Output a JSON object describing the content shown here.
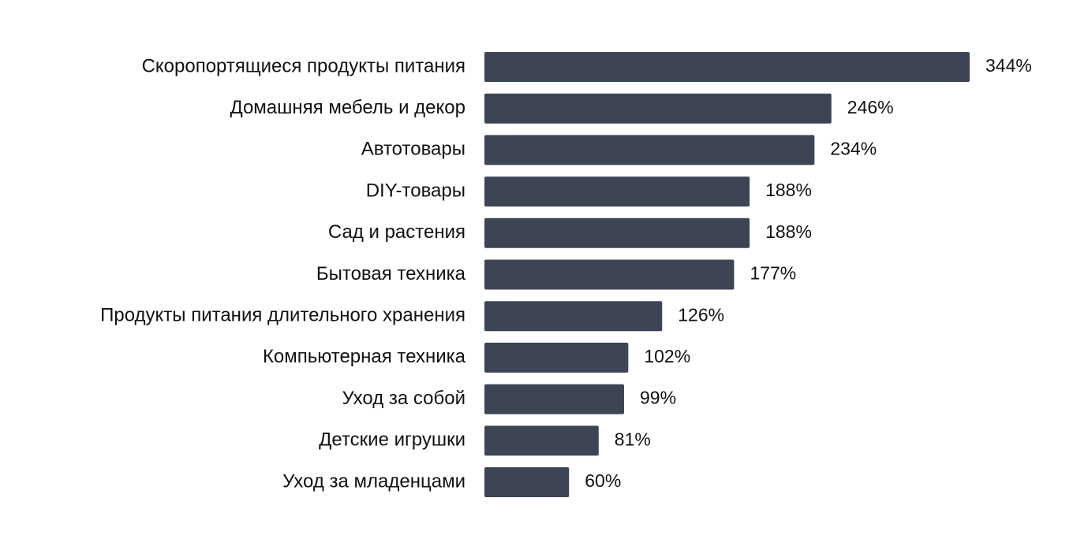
{
  "chart_data": {
    "type": "bar",
    "orientation": "horizontal",
    "categories": [
      "Скоропортящиеся продукты питания",
      "Домашняя мебель и декор",
      "Автотовары",
      "DIY-товары",
      "Сад и растения",
      "Бытовая техника",
      "Продукты питания длительного хранения",
      "Компьютерная техника",
      "Уход за собой",
      "Детские игрушки",
      "Уход за младенцами"
    ],
    "values": [
      344,
      246,
      234,
      188,
      188,
      177,
      126,
      102,
      99,
      81,
      60
    ],
    "value_labels": [
      "344%",
      "246%",
      "234%",
      "188%",
      "188%",
      "177%",
      "126%",
      "102%",
      "99%",
      "81%",
      "60%"
    ],
    "color": "#3d4555"
  }
}
